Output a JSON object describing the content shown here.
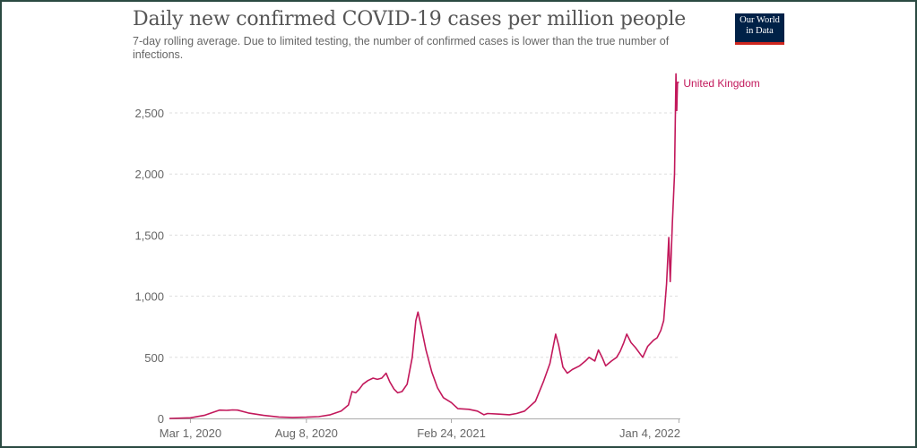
{
  "logo": {
    "line1": "Our World",
    "line2": "in Data"
  },
  "chart_data": {
    "type": "line",
    "title": "Daily new confirmed COVID-19 cases per million people",
    "subtitle": "7-day rolling average. Due to limited testing, the number of confirmed cases is lower than the true number of infections.",
    "xlabel": "",
    "ylabel": "",
    "x_range": [
      "2020-02-01",
      "2022-01-06"
    ],
    "ylim": [
      0,
      2500
    ],
    "grid": true,
    "x_tick_labels": [
      {
        "date": "2020-03-01",
        "label": "Mar 1, 2020"
      },
      {
        "date": "2020-08-08",
        "label": "Aug 8, 2020"
      },
      {
        "date": "2021-02-24",
        "label": "Feb 24, 2021"
      },
      {
        "date": "2022-01-04",
        "label": "Jan 4, 2022"
      }
    ],
    "y_ticks": [
      {
        "value": 0,
        "label": "0"
      },
      {
        "value": 500,
        "label": "500"
      },
      {
        "value": 1000,
        "label": "1,000"
      },
      {
        "value": 1500,
        "label": "1,500"
      },
      {
        "value": 2000,
        "label": "2,000"
      },
      {
        "value": 2500,
        "label": "2,500"
      }
    ],
    "series": [
      {
        "name": "United Kingdom",
        "color": "#c2185b",
        "points": [
          [
            "2020-02-01",
            0
          ],
          [
            "2020-03-01",
            5
          ],
          [
            "2020-03-20",
            25
          ],
          [
            "2020-04-01",
            50
          ],
          [
            "2020-04-10",
            68
          ],
          [
            "2020-04-20",
            66
          ],
          [
            "2020-04-28",
            70
          ],
          [
            "2020-05-05",
            68
          ],
          [
            "2020-05-20",
            45
          ],
          [
            "2020-06-10",
            25
          ],
          [
            "2020-07-01",
            12
          ],
          [
            "2020-07-20",
            8
          ],
          [
            "2020-08-08",
            10
          ],
          [
            "2020-08-25",
            15
          ],
          [
            "2020-09-10",
            30
          ],
          [
            "2020-09-25",
            60
          ],
          [
            "2020-10-05",
            110
          ],
          [
            "2020-10-10",
            220
          ],
          [
            "2020-10-15",
            210
          ],
          [
            "2020-10-20",
            240
          ],
          [
            "2020-10-25",
            280
          ],
          [
            "2020-11-01",
            310
          ],
          [
            "2020-11-08",
            330
          ],
          [
            "2020-11-14",
            320
          ],
          [
            "2020-11-20",
            330
          ],
          [
            "2020-11-26",
            370
          ],
          [
            "2020-12-01",
            300
          ],
          [
            "2020-12-07",
            240
          ],
          [
            "2020-12-12",
            210
          ],
          [
            "2020-12-18",
            220
          ],
          [
            "2020-12-25",
            280
          ],
          [
            "2021-01-01",
            500
          ],
          [
            "2021-01-06",
            800
          ],
          [
            "2021-01-09",
            870
          ],
          [
            "2021-01-13",
            760
          ],
          [
            "2021-01-20",
            560
          ],
          [
            "2021-01-28",
            380
          ],
          [
            "2021-02-05",
            250
          ],
          [
            "2021-02-13",
            170
          ],
          [
            "2021-02-24",
            130
          ],
          [
            "2021-03-05",
            80
          ],
          [
            "2021-03-20",
            75
          ],
          [
            "2021-04-01",
            60
          ],
          [
            "2021-04-10",
            30
          ],
          [
            "2021-04-15",
            40
          ],
          [
            "2021-05-01",
            35
          ],
          [
            "2021-05-15",
            30
          ],
          [
            "2021-05-25",
            40
          ],
          [
            "2021-06-05",
            60
          ],
          [
            "2021-06-20",
            140
          ],
          [
            "2021-07-01",
            300
          ],
          [
            "2021-07-10",
            450
          ],
          [
            "2021-07-15",
            600
          ],
          [
            "2021-07-18",
            690
          ],
          [
            "2021-07-22",
            600
          ],
          [
            "2021-07-28",
            420
          ],
          [
            "2021-08-03",
            370
          ],
          [
            "2021-08-10",
            400
          ],
          [
            "2021-08-20",
            430
          ],
          [
            "2021-08-28",
            470
          ],
          [
            "2021-09-02",
            500
          ],
          [
            "2021-09-10",
            470
          ],
          [
            "2021-09-15",
            560
          ],
          [
            "2021-09-20",
            500
          ],
          [
            "2021-09-25",
            430
          ],
          [
            "2021-10-03",
            470
          ],
          [
            "2021-10-10",
            500
          ],
          [
            "2021-10-15",
            550
          ],
          [
            "2021-10-20",
            620
          ],
          [
            "2021-10-24",
            690
          ],
          [
            "2021-10-30",
            620
          ],
          [
            "2021-11-05",
            580
          ],
          [
            "2021-11-10",
            540
          ],
          [
            "2021-11-15",
            500
          ],
          [
            "2021-11-22",
            590
          ],
          [
            "2021-11-30",
            640
          ],
          [
            "2021-12-05",
            660
          ],
          [
            "2021-12-10",
            720
          ],
          [
            "2021-12-14",
            800
          ],
          [
            "2021-12-18",
            1100
          ],
          [
            "2021-12-21",
            1480
          ],
          [
            "2021-12-23",
            1120
          ],
          [
            "2021-12-26",
            1600
          ],
          [
            "2021-12-29",
            2000
          ],
          [
            "2021-12-31",
            2820
          ],
          [
            "2022-01-01",
            2520
          ],
          [
            "2022-01-02",
            2750
          ],
          [
            "2022-01-04",
            2750
          ]
        ]
      }
    ]
  }
}
